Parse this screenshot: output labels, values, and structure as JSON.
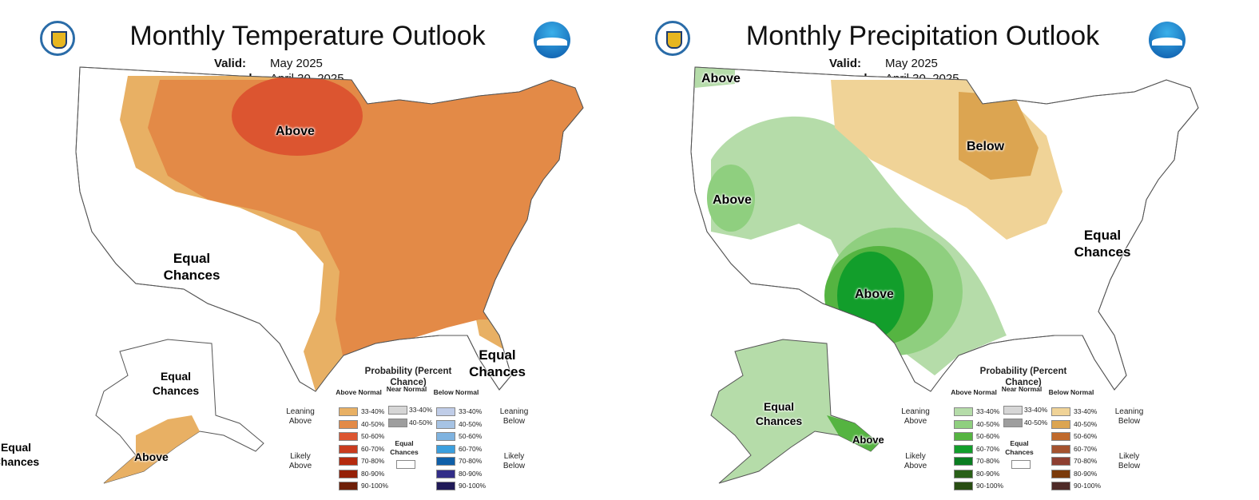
{
  "panels": [
    {
      "title": "Monthly Temperature Outlook",
      "valid_label": "Valid:",
      "valid": "May 2025",
      "issued_label": "Issued:",
      "issued": "April 30, 2025",
      "map_labels": {
        "above_main": "Above",
        "equal_west": "Equal Chances",
        "equal_florida": "Equal Chances",
        "equal_alaska": "Equal Chances",
        "equal_hawaii": "Equal Chances",
        "above_alaska": "Above"
      },
      "legend": {
        "title": "Probability (Percent Chance)",
        "above_header": "Above Normal",
        "near_header": "Near Normal",
        "below_header": "Below Normal",
        "leaning_above": "Leaning Above",
        "likely_above": "Likely Above",
        "leaning_below": "Leaning Below",
        "likely_below": "Likely Below",
        "equal_chances": "Equal Chances",
        "ranges": [
          "33-40%",
          "40-50%",
          "50-60%",
          "60-70%",
          "70-80%",
          "80-90%",
          "90-100%"
        ],
        "above_colors": [
          "#e8b064",
          "#e38a47",
          "#dc5530",
          "#c93b1e",
          "#b52a0e",
          "#952007",
          "#6e1f08"
        ],
        "near_colors": [
          "#d6d6d6",
          "#9e9e9e"
        ],
        "below_colors": [
          "#c0cde8",
          "#a6c3e4",
          "#7fb3e0",
          "#3b9fde",
          "#0f5fa8",
          "#322d88",
          "#201a58"
        ]
      }
    },
    {
      "title": "Monthly Precipitation Outlook",
      "valid_label": "Valid:",
      "valid": "May 2025",
      "issued_label": "Issued:",
      "issued": "April 30, 2025",
      "map_labels": {
        "above_nw": "Above",
        "above_west": "Above",
        "below_lakes": "Below",
        "equal_east": "Equal Chances",
        "above_south": "Above",
        "equal_alaska": "Equal Chances",
        "above_alaska": "Above"
      },
      "legend": {
        "title": "Probability (Percent Chance)",
        "above_header": "Above Normal",
        "near_header": "Near Normal",
        "below_header": "Below Normal",
        "leaning_above": "Leaning Above",
        "likely_above": "Likely Above",
        "leaning_below": "Leaning Below",
        "likely_below": "Likely Below",
        "equal_chances": "Equal Chances",
        "ranges": [
          "33-40%",
          "40-50%",
          "50-60%",
          "60-70%",
          "70-80%",
          "80-90%",
          "90-100%"
        ],
        "above_colors": [
          "#b5dca9",
          "#8fcf7f",
          "#55b441",
          "#129e2b",
          "#0a7d21",
          "#296018",
          "#284d12"
        ],
        "near_colors": [
          "#d6d6d6",
          "#9e9e9e"
        ],
        "below_colors": [
          "#f0d397",
          "#dca551",
          "#c06a2c",
          "#a4532f",
          "#8e3f31",
          "#7b3a0a",
          "#4e2a27"
        ]
      }
    }
  ]
}
